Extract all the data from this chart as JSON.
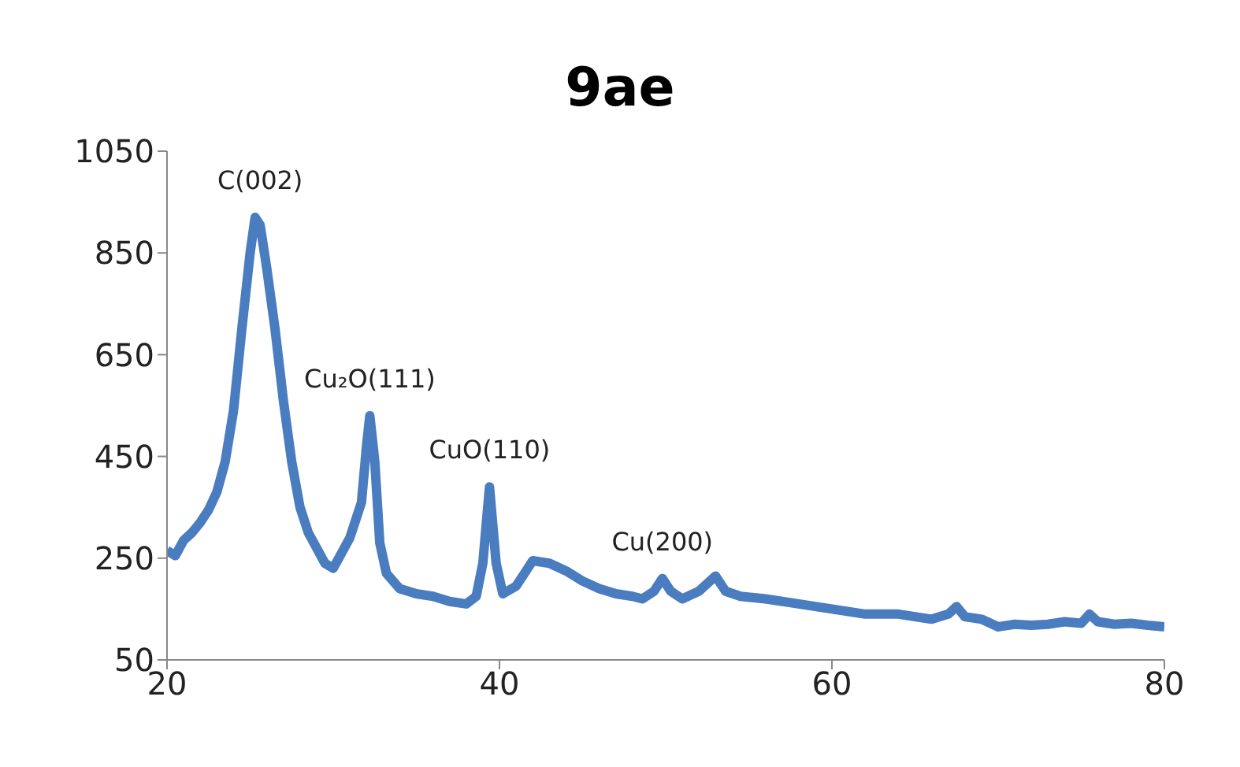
{
  "chart_data": {
    "type": "line",
    "title": "9ae",
    "x": [
      20,
      20.5,
      21,
      21.5,
      22,
      22.5,
      23,
      23.5,
      24,
      24.5,
      25,
      25.3,
      25.6,
      26,
      26.5,
      27,
      27.5,
      28,
      28.5,
      29,
      29.5,
      30,
      30.5,
      31,
      31.3,
      31.7,
      32,
      32.2,
      32.5,
      32.8,
      33.2,
      34,
      35,
      36,
      37,
      38,
      38.6,
      39,
      39.4,
      39.8,
      40.2,
      41,
      41.5,
      42,
      43,
      44,
      45,
      46,
      47,
      48,
      48.6,
      49.3,
      49.8,
      50.3,
      51,
      52,
      53,
      53.6,
      54.5,
      56,
      58,
      60,
      62,
      64,
      65,
      66,
      67,
      67.5,
      68,
      69,
      70,
      71,
      72,
      73,
      74,
      75,
      75.5,
      76,
      77,
      78,
      79,
      80
    ],
    "series": [
      {
        "color": "#4a7cc0",
        "values": [
          265,
          255,
          285,
          300,
          320,
          345,
          380,
          440,
          540,
          700,
          850,
          920,
          905,
          820,
          700,
          560,
          440,
          350,
          300,
          270,
          240,
          230,
          260,
          290,
          320,
          360,
          470,
          530,
          440,
          280,
          220,
          190,
          180,
          175,
          165,
          160,
          175,
          240,
          390,
          240,
          180,
          195,
          220,
          245,
          240,
          225,
          205,
          190,
          180,
          175,
          170,
          185,
          210,
          185,
          170,
          185,
          215,
          185,
          175,
          170,
          160,
          150,
          140,
          140,
          135,
          130,
          140,
          155,
          135,
          130,
          115,
          120,
          118,
          120,
          125,
          122,
          140,
          125,
          120,
          122,
          118,
          115
        ]
      }
    ],
    "xlim": [
      20,
      80
    ],
    "xticks": [
      20,
      40,
      60,
      80
    ],
    "ylim": [
      50,
      1050
    ],
    "yticks": [
      50,
      250,
      450,
      650,
      850,
      1050
    ],
    "grid": false,
    "legend": false,
    "marker": "none",
    "line_style": "solid",
    "annotations": [
      {
        "text": "C(002)",
        "x": 25.6,
        "y": 920
      },
      {
        "text": "Cu₂O(111)",
        "x": 32.2,
        "y": 530
      },
      {
        "text": "CuO(110)",
        "x": 39.4,
        "y": 390
      },
      {
        "text": "Cu(200)",
        "x": 49.8,
        "y": 210
      }
    ]
  }
}
